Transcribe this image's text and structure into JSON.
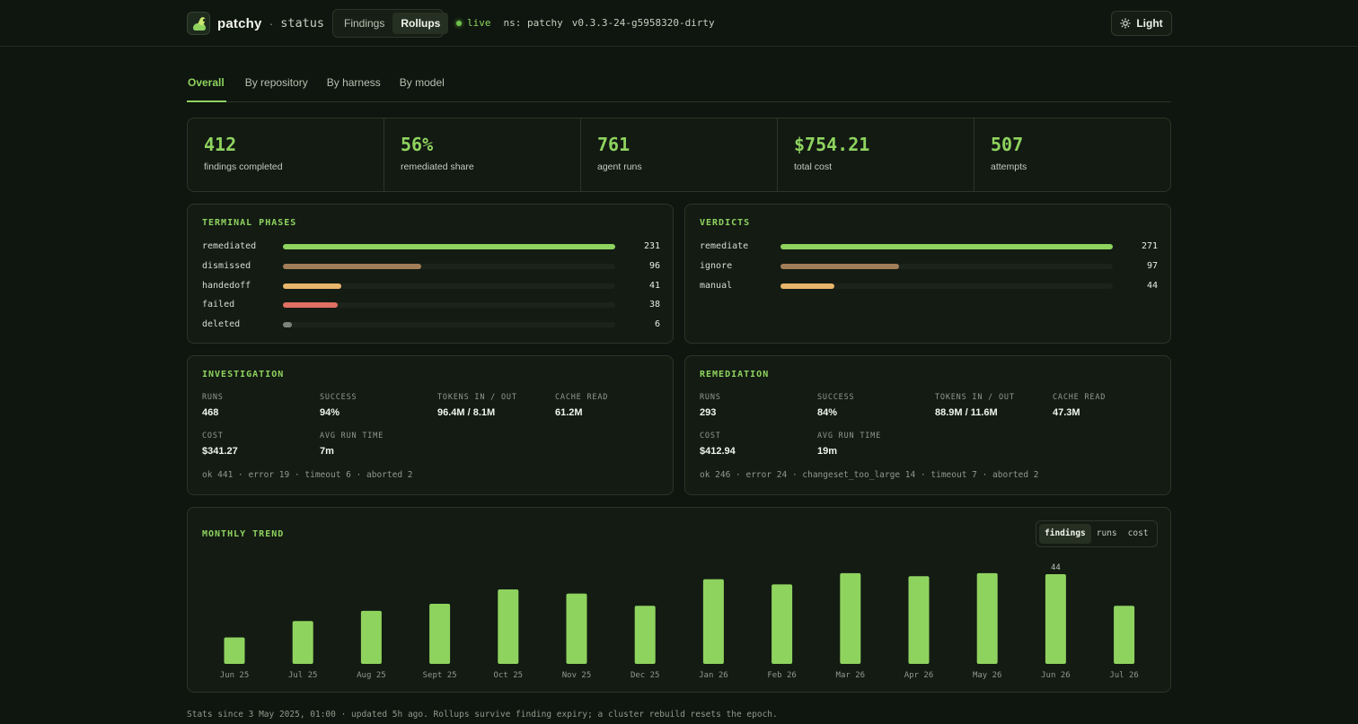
{
  "header": {
    "brand": "patchy",
    "separator": "·",
    "subtitle": "status",
    "nav": [
      "Findings",
      "Rollups"
    ],
    "live": "live",
    "namespace": "ns: patchy",
    "version": "v0.3.3-24-g5958320-dirty",
    "theme_button": "Light"
  },
  "tabs": [
    "Overall",
    "By repository",
    "By harness",
    "By model"
  ],
  "stats": [
    {
      "value": "412",
      "label": "findings completed"
    },
    {
      "value": "56%",
      "label": "remediated share"
    },
    {
      "value": "761",
      "label": "agent runs"
    },
    {
      "value": "$754.21",
      "label": "total cost"
    },
    {
      "value": "507",
      "label": "attempts"
    }
  ],
  "terminal_phases": {
    "title": "TERMINAL PHASES",
    "rows": [
      {
        "label": "remediated",
        "value": "231",
        "fraction": 1.0,
        "color": "#8fd35f"
      },
      {
        "label": "dismissed",
        "value": "96",
        "fraction": 0.416,
        "color": "#a27e58"
      },
      {
        "label": "handedoff",
        "value": "41",
        "fraction": 0.177,
        "color": "#e8b66b"
      },
      {
        "label": "failed",
        "value": "38",
        "fraction": 0.164,
        "color": "#e06f64"
      },
      {
        "label": "deleted",
        "value": "6",
        "fraction": 0.026,
        "color": "#7b8478"
      }
    ]
  },
  "verdicts": {
    "title": "VERDICTS",
    "rows": [
      {
        "label": "remediate",
        "value": "271",
        "fraction": 1.0,
        "color": "#8fd35f"
      },
      {
        "label": "ignore",
        "value": "97",
        "fraction": 0.358,
        "color": "#a27e58"
      },
      {
        "label": "manual",
        "value": "44",
        "fraction": 0.162,
        "color": "#e8b66b"
      }
    ]
  },
  "investigation": {
    "title": "INVESTIGATION",
    "metrics": [
      {
        "label": "RUNS",
        "value": "468"
      },
      {
        "label": "SUCCESS",
        "value": "94%"
      },
      {
        "label": "TOKENS IN / OUT",
        "value": "96.4M / 8.1M"
      },
      {
        "label": "CACHE READ",
        "value": "61.2M"
      },
      {
        "label": "COST",
        "value": "$341.27"
      },
      {
        "label": "AVG RUN TIME",
        "value": "7m"
      }
    ],
    "breakdown": "ok 441 · error 19 · timeout 6 · aborted 2"
  },
  "remediation": {
    "title": "REMEDIATION",
    "metrics": [
      {
        "label": "RUNS",
        "value": "293"
      },
      {
        "label": "SUCCESS",
        "value": "84%"
      },
      {
        "label": "TOKENS IN / OUT",
        "value": "88.9M / 11.6M"
      },
      {
        "label": "CACHE READ",
        "value": "47.3M"
      },
      {
        "label": "COST",
        "value": "$412.94"
      },
      {
        "label": "AVG RUN TIME",
        "value": "19m"
      }
    ],
    "breakdown": "ok 246 · error 24 · changeset_too_large 14 · timeout 7 · aborted 2"
  },
  "trend": {
    "title": "MONTHLY TREND",
    "toggle": [
      "findings",
      "runs",
      "cost"
    ],
    "active_toggle": "findings"
  },
  "chart_data": {
    "type": "bar",
    "categories": [
      "Jun 25",
      "Jul 25",
      "Aug 25",
      "Sept 25",
      "Oct 25",
      "Nov 25",
      "Dec 25",
      "Jan 26",
      "Feb 26",
      "Mar 26",
      "Apr 26",
      "May 26",
      "Jun 26",
      "Jul 26"
    ],
    "values": [
      13,
      21,
      26,
      29.5,
      36.5,
      34.5,
      28.5,
      41.5,
      39,
      44.5,
      43,
      44.5,
      44,
      28.5
    ],
    "data_labels": [
      {
        "index": 12,
        "text": "44"
      }
    ],
    "ylim": [
      0,
      44
    ],
    "color": "#8fd35f"
  },
  "footer": "Stats since 3 May 2025, 01:00 · updated 5h ago. Rollups survive finding expiry; a cluster rebuild resets the epoch."
}
